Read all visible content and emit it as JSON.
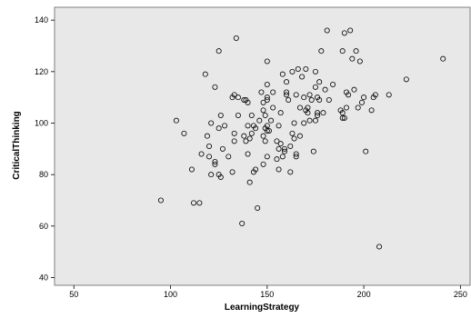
{
  "chart_data": {
    "type": "scatter",
    "title": "",
    "xlabel": "LearningStrategy",
    "ylabel": "CriticalThinking",
    "xlim": [
      40,
      255
    ],
    "ylim": [
      37,
      145
    ],
    "xticks": [
      50,
      100,
      150,
      200,
      250
    ],
    "yticks": [
      40,
      60,
      80,
      100,
      120,
      140
    ],
    "grid": false,
    "colors": {
      "plot_background": "#e8e8e8",
      "marker_edge": "#000000",
      "frame": "#7f7f7f"
    },
    "x": [
      95,
      103,
      107,
      111,
      112,
      115,
      116,
      118,
      119,
      120,
      120,
      121,
      121,
      123,
      123,
      123,
      125,
      125,
      125,
      126,
      126,
      127,
      128,
      130,
      132,
      132,
      133,
      133,
      133,
      134,
      135,
      135,
      137,
      138,
      138,
      139,
      139,
      140,
      140,
      140,
      141,
      141,
      142,
      142,
      143,
      143,
      144,
      144,
      145,
      146,
      147,
      148,
      148,
      148,
      148,
      149,
      149,
      149,
      150,
      150,
      150,
      150,
      150,
      150,
      150,
      151,
      152,
      153,
      153,
      155,
      155,
      156,
      156,
      156,
      157,
      157,
      158,
      158,
      159,
      159,
      160,
      160,
      160,
      161,
      162,
      162,
      163,
      163,
      164,
      164,
      165,
      165,
      165,
      166,
      167,
      167,
      168,
      169,
      169,
      170,
      170,
      171,
      171,
      172,
      172,
      173,
      174,
      175,
      175,
      175,
      176,
      176,
      176,
      177,
      177,
      178,
      179,
      180,
      181,
      182,
      184,
      188,
      189,
      189,
      189,
      190,
      190,
      191,
      191,
      192,
      193,
      194,
      195,
      196,
      197,
      198,
      199,
      200,
      201,
      204,
      205,
      206,
      208,
      213,
      222,
      241
    ],
    "y": [
      70,
      101,
      96,
      82,
      69,
      69,
      88,
      119,
      95,
      91,
      87,
      80,
      100,
      84,
      85,
      114,
      128,
      98,
      80,
      79,
      103,
      90,
      99,
      87,
      81,
      110,
      93,
      111,
      96,
      133,
      103,
      110,
      61,
      109,
      95,
      109,
      93,
      108,
      99,
      88,
      94,
      77,
      103,
      96,
      81,
      99,
      82,
      98,
      67,
      101,
      112,
      108,
      105,
      95,
      84,
      93,
      103,
      98,
      87,
      109,
      110,
      99,
      124,
      115,
      97,
      97,
      101,
      112,
      106,
      86,
      93,
      82,
      90,
      99,
      104,
      92,
      119,
      87,
      90,
      89,
      116,
      111,
      112,
      109,
      81,
      91,
      96,
      120,
      94,
      100,
      88,
      87,
      111,
      121,
      95,
      106,
      118,
      110,
      100,
      121,
      105,
      106,
      104,
      111,
      101,
      109,
      89,
      120,
      114,
      101,
      104,
      103,
      110,
      109,
      116,
      128,
      104,
      113,
      136,
      109,
      115,
      105,
      128,
      104,
      102,
      102,
      135,
      106,
      112,
      111,
      136,
      125,
      113,
      128,
      106,
      124,
      108,
      110,
      89,
      105,
      110,
      111,
      52,
      111,
      117,
      125
    ]
  }
}
